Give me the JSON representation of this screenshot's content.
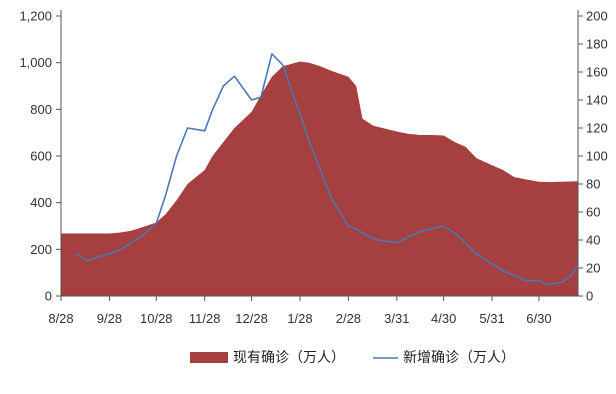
{
  "chart_data": {
    "type": "area+line",
    "title": "",
    "xlabel": "",
    "ylabel": "",
    "y_left": {
      "min": 0,
      "max": 1200,
      "ticks": [
        0,
        200,
        400,
        600,
        800,
        1000,
        1200
      ],
      "tick_labels": [
        "0",
        "200",
        "400",
        "600",
        "800",
        "1,000",
        "1,200"
      ]
    },
    "y_right": {
      "min": 0,
      "max": 200,
      "ticks": [
        0,
        20,
        40,
        60,
        80,
        100,
        120,
        140,
        160,
        180,
        200
      ],
      "tick_labels": [
        "0",
        "20",
        "40",
        "60",
        "80",
        "100",
        "120",
        "140",
        "160",
        "180",
        "200"
      ]
    },
    "x_range": [
      "8/28",
      "7/25"
    ],
    "x_ticks": [
      {
        "date": "8/28",
        "label": "8/28"
      },
      {
        "date": "9/28",
        "label": "9/28"
      },
      {
        "date": "10/28",
        "label": "10/28"
      },
      {
        "date": "11/28",
        "label": "11/28"
      },
      {
        "date": "12/28",
        "label": "12/28"
      },
      {
        "date": "1/28",
        "label": "1/28"
      },
      {
        "date": "2/28",
        "label": "2/28"
      },
      {
        "date": "3/31",
        "label": "3/31"
      },
      {
        "date": "4/30",
        "label": "4/30"
      },
      {
        "date": "5/31",
        "label": "5/31"
      },
      {
        "date": "6/30",
        "label": "6/30"
      }
    ],
    "grid": false,
    "legend_position": "bottom",
    "series": [
      {
        "name": "现有确诊（万人）",
        "kind": "area",
        "axis": "left",
        "color": "#a63f3f",
        "points": [
          {
            "x": "8/28",
            "y": 268
          },
          {
            "x": "9/7",
            "y": 268
          },
          {
            "x": "9/14",
            "y": 268
          },
          {
            "x": "9/21",
            "y": 268
          },
          {
            "x": "9/28",
            "y": 268
          },
          {
            "x": "10/5",
            "y": 272
          },
          {
            "x": "10/12",
            "y": 280
          },
          {
            "x": "10/19",
            "y": 295
          },
          {
            "x": "10/28",
            "y": 315
          },
          {
            "x": "11/3",
            "y": 350
          },
          {
            "x": "11/10",
            "y": 410
          },
          {
            "x": "11/17",
            "y": 480
          },
          {
            "x": "11/28",
            "y": 540
          },
          {
            "x": "12/3",
            "y": 600
          },
          {
            "x": "12/10",
            "y": 660
          },
          {
            "x": "12/17",
            "y": 720
          },
          {
            "x": "12/28",
            "y": 790
          },
          {
            "x": "1/3",
            "y": 860
          },
          {
            "x": "1/10",
            "y": 940
          },
          {
            "x": "1/17",
            "y": 985
          },
          {
            "x": "1/28",
            "y": 1005
          },
          {
            "x": "2/3",
            "y": 1000
          },
          {
            "x": "2/10",
            "y": 985
          },
          {
            "x": "2/17",
            "y": 965
          },
          {
            "x": "2/28",
            "y": 940
          },
          {
            "x": "3/5",
            "y": 900
          },
          {
            "x": "3/9",
            "y": 760
          },
          {
            "x": "3/16",
            "y": 730
          },
          {
            "x": "3/31",
            "y": 705
          },
          {
            "x": "4/7",
            "y": 695
          },
          {
            "x": "4/15",
            "y": 690
          },
          {
            "x": "4/22",
            "y": 690
          },
          {
            "x": "4/30",
            "y": 688
          },
          {
            "x": "5/7",
            "y": 660
          },
          {
            "x": "5/14",
            "y": 640
          },
          {
            "x": "5/21",
            "y": 590
          },
          {
            "x": "5/31",
            "y": 560
          },
          {
            "x": "6/7",
            "y": 540
          },
          {
            "x": "6/14",
            "y": 510
          },
          {
            "x": "6/21",
            "y": 500
          },
          {
            "x": "6/30",
            "y": 490
          },
          {
            "x": "7/7",
            "y": 488
          },
          {
            "x": "7/14",
            "y": 490
          },
          {
            "x": "7/25",
            "y": 492
          }
        ]
      },
      {
        "name": "新增确诊（万人）",
        "kind": "line",
        "axis": "right",
        "color": "#4a78b5",
        "points": [
          {
            "x": "9/7",
            "y": 30
          },
          {
            "x": "9/14",
            "y": 25
          },
          {
            "x": "9/21",
            "y": 28
          },
          {
            "x": "9/28",
            "y": 30
          },
          {
            "x": "10/5",
            "y": 33
          },
          {
            "x": "10/12",
            "y": 38
          },
          {
            "x": "10/19",
            "y": 43
          },
          {
            "x": "10/28",
            "y": 52
          },
          {
            "x": "11/3",
            "y": 72
          },
          {
            "x": "11/10",
            "y": 100
          },
          {
            "x": "11/17",
            "y": 120
          },
          {
            "x": "11/28",
            "y": 118
          },
          {
            "x": "12/3",
            "y": 133
          },
          {
            "x": "12/10",
            "y": 150
          },
          {
            "x": "12/17",
            "y": 157
          },
          {
            "x": "12/28",
            "y": 140
          },
          {
            "x": "1/3",
            "y": 142
          },
          {
            "x": "1/10",
            "y": 173
          },
          {
            "x": "1/17",
            "y": 165
          },
          {
            "x": "1/28",
            "y": 130
          },
          {
            "x": "2/3",
            "y": 110
          },
          {
            "x": "2/10",
            "y": 90
          },
          {
            "x": "2/17",
            "y": 70
          },
          {
            "x": "2/28",
            "y": 50
          },
          {
            "x": "3/5",
            "y": 48
          },
          {
            "x": "3/12",
            "y": 43
          },
          {
            "x": "3/19",
            "y": 40
          },
          {
            "x": "3/31",
            "y": 38
          },
          {
            "x": "4/7",
            "y": 42
          },
          {
            "x": "4/15",
            "y": 46
          },
          {
            "x": "4/22",
            "y": 48
          },
          {
            "x": "4/30",
            "y": 50
          },
          {
            "x": "5/7",
            "y": 45
          },
          {
            "x": "5/14",
            "y": 38
          },
          {
            "x": "5/21",
            "y": 30
          },
          {
            "x": "5/31",
            "y": 23
          },
          {
            "x": "6/7",
            "y": 18
          },
          {
            "x": "6/14",
            "y": 15
          },
          {
            "x": "6/21",
            "y": 11
          },
          {
            "x": "6/30",
            "y": 11
          },
          {
            "x": "7/5",
            "y": 8
          },
          {
            "x": "7/10",
            "y": 9
          },
          {
            "x": "7/15",
            "y": 10
          },
          {
            "x": "7/20",
            "y": 14
          },
          {
            "x": "7/25",
            "y": 22
          }
        ]
      }
    ]
  }
}
